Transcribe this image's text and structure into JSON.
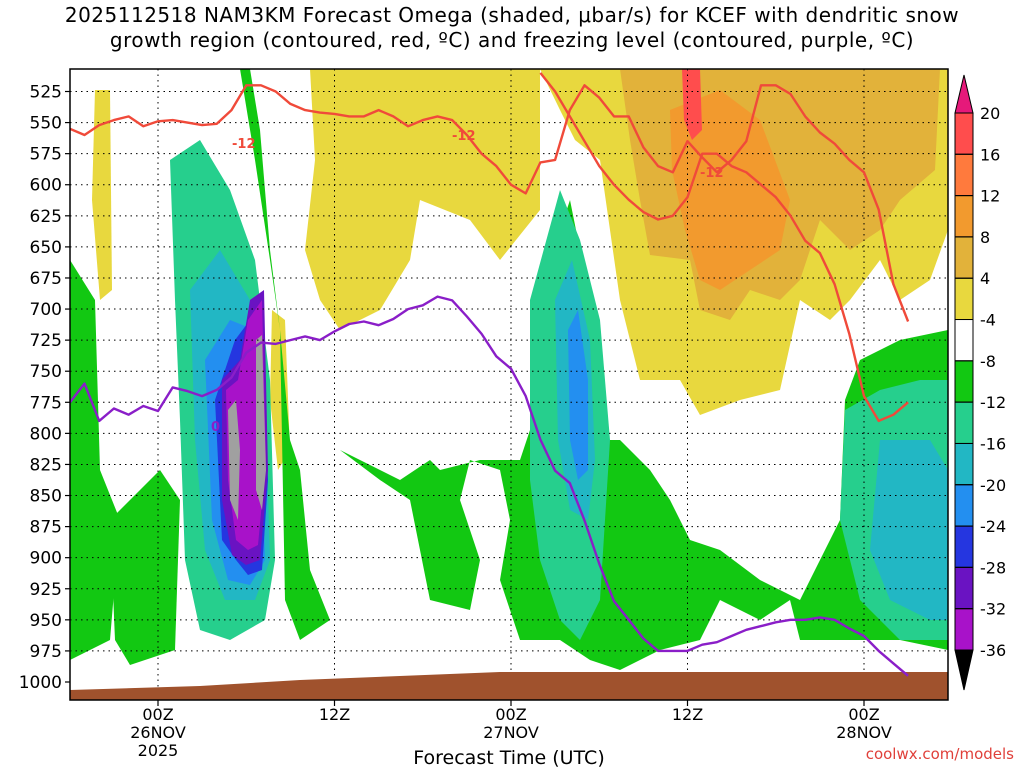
{
  "title": {
    "line1": "2025112518 NAM3KM Forecast Omega (shaded, μbar/s) for KCEF with dendritic snow",
    "line2": "growth region (contoured, red, ºC) and freezing level (contoured, purple, ºC)"
  },
  "chart_data": {
    "type": "heatmap",
    "title": "2025112518 NAM3KM Forecast Omega (shaded, μbar/s) for KCEF with dendritic snow growth region (contoured, red, ºC) and freezing level (contoured, purple, ºC)",
    "xlabel": "Forecast Time (UTC)",
    "ylabel": "",
    "y_ticks": [
      "525",
      "550",
      "575",
      "600",
      "625",
      "650",
      "675",
      "700",
      "725",
      "750",
      "775",
      "800",
      "825",
      "850",
      "875",
      "900",
      "925",
      "950",
      "975",
      "1000"
    ],
    "ylim": [
      1000,
      510
    ],
    "x_ticks": [
      {
        "label": "00Z",
        "sub": "26NOV",
        "sub2": "2025",
        "hour": 6
      },
      {
        "label": "12Z",
        "sub": "",
        "sub2": "",
        "hour": 18
      },
      {
        "label": "00Z",
        "sub": "27NOV",
        "sub2": "",
        "hour": 30
      },
      {
        "label": "12Z",
        "sub": "",
        "sub2": "",
        "hour": 42
      },
      {
        "label": "00Z",
        "sub": "28NOV",
        "sub2": "",
        "hour": 54
      }
    ],
    "xlim_hours": [
      0,
      60
    ],
    "colorbar": {
      "labels": [
        "20",
        "16",
        "12",
        "8",
        "4",
        "-4",
        "-8",
        "-12",
        "-16",
        "-20",
        "-24",
        "-28",
        "-32",
        "-36"
      ],
      "colors": [
        "#ff4d4d",
        "#ff7a3d",
        "#f29a2e",
        "#e2b23a",
        "#e8d83e",
        "#ffffff",
        "#12c812",
        "#26cf8d",
        "#22b7c4",
        "#238ff0",
        "#2536e0",
        "#6a13c2",
        "#a812c9",
        "#a0a0a0"
      ],
      "top_arrow": "#e6197a",
      "bottom_arrow": "#000000"
    },
    "contour_labels": [
      {
        "text": "-12",
        "color": "#f04a3a"
      },
      {
        "text": "-12",
        "color": "#f04a3a"
      },
      {
        "text": "-12",
        "color": "#f04a3a"
      },
      {
        "text": "0",
        "color": "#8a1ec8"
      }
    ],
    "series": [
      {
        "name": "freezing level (0 ºC)",
        "color": "#8a1ec8",
        "x": [
          0,
          1,
          2,
          3,
          4,
          5,
          6,
          7,
          8,
          9,
          10,
          11,
          12,
          13,
          14,
          15,
          16,
          17,
          18,
          19,
          20,
          21,
          22,
          23,
          24,
          25,
          26,
          27,
          28,
          29,
          30,
          31,
          32,
          33,
          34,
          35,
          36,
          37,
          38,
          39,
          40,
          41,
          42,
          43,
          44,
          45,
          46,
          47,
          48,
          49,
          50,
          51,
          52,
          53,
          54,
          55,
          56,
          57
        ],
        "y": [
          775,
          760,
          790,
          780,
          785,
          778,
          782,
          763,
          766,
          770,
          765,
          755,
          735,
          727,
          728,
          725,
          722,
          725,
          718,
          712,
          710,
          713,
          708,
          700,
          697,
          690,
          693,
          706,
          720,
          738,
          748,
          770,
          805,
          830,
          840,
          870,
          905,
          935,
          950,
          965,
          975,
          975,
          975,
          970,
          968,
          963,
          958,
          955,
          952,
          950,
          950,
          948,
          950,
          957,
          963,
          975,
          985,
          995
        ]
      },
      {
        "name": "dendritic -12 ºC (upper)",
        "color": "#f04a3a",
        "x": [
          0,
          1,
          2,
          3,
          4,
          5,
          6,
          7,
          8,
          9,
          10,
          11,
          12,
          13,
          14,
          15,
          16,
          17,
          18,
          19,
          20,
          21,
          22,
          23,
          24,
          25,
          26,
          27,
          28,
          29,
          30,
          31,
          32,
          33,
          34,
          35,
          36,
          37,
          38,
          39,
          40,
          41,
          42,
          43,
          44,
          45,
          46,
          47,
          48,
          49,
          50,
          51,
          52,
          53,
          54,
          55,
          56,
          57
        ],
        "y": [
          555,
          560,
          552,
          548,
          545,
          553,
          549,
          548,
          550,
          552,
          551,
          540,
          520,
          520,
          525,
          535,
          540,
          542,
          543,
          545,
          545,
          540,
          545,
          553,
          548,
          545,
          548,
          560,
          575,
          585,
          600,
          607,
          582,
          580,
          540,
          520,
          530,
          545,
          545,
          570,
          585,
          590,
          565,
          578,
          590,
          580,
          565,
          520,
          520,
          527,
          545,
          558,
          567,
          580,
          590,
          620,
          680,
          710
        ]
      },
      {
        "name": "dendritic -12 ºC (lower)",
        "color": "#f04a3a",
        "x": [
          32,
          33,
          34,
          35,
          36,
          37,
          38,
          39,
          40,
          41,
          42,
          43,
          44,
          45,
          46,
          47,
          48,
          49,
          50,
          51,
          52,
          53,
          54,
          55,
          56,
          57
        ],
        "y": [
          510,
          525,
          545,
          565,
          585,
          600,
          612,
          622,
          628,
          625,
          610,
          575,
          575,
          585,
          590,
          600,
          610,
          625,
          645,
          655,
          680,
          720,
          770,
          790,
          785,
          775
        ]
      }
    ]
  },
  "footer": {
    "xlabel": "Forecast Time (UTC)",
    "credit": "coolwx.com/models"
  }
}
